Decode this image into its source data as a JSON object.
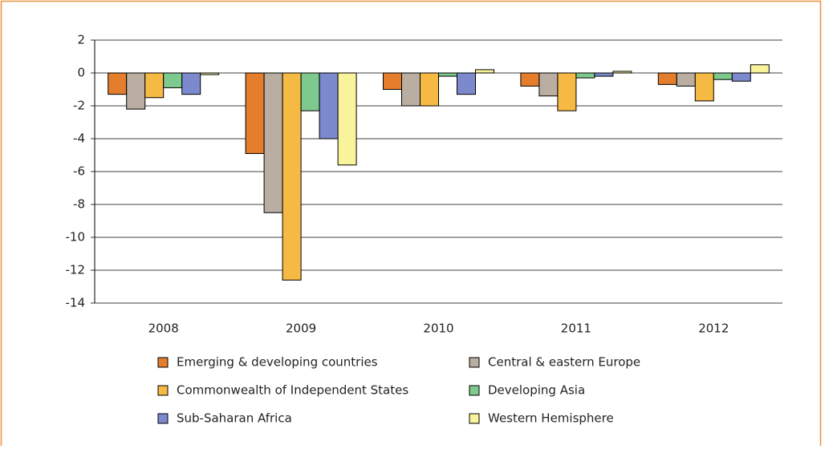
{
  "chart_data": {
    "type": "bar",
    "categories": [
      "2008",
      "2009",
      "2010",
      "2011",
      "2012"
    ],
    "series": [
      {
        "name": "Emerging & developing countries",
        "color": "#e47d2c",
        "values": [
          -1.3,
          -4.9,
          -1.0,
          -0.8,
          -0.7
        ]
      },
      {
        "name": "Central & eastern Europe",
        "color": "#b9ae a1",
        "values": [
          -2.2,
          -8.5,
          -2.0,
          -1.4,
          -0.8
        ]
      },
      {
        "name": "Commonwealth of Independent States",
        "color": "#f6ba44",
        "values": [
          -1.5,
          -12.6,
          -2.0,
          -2.3,
          -1.7
        ]
      },
      {
        "name": "Developing Asia",
        "color": "#7ec98d",
        "values": [
          -0.9,
          -2.3,
          -0.2,
          -0.3,
          -0.4
        ]
      },
      {
        "name": "Sub-Saharan Africa",
        "color": "#7c89cd",
        "values": [
          -1.3,
          -4.0,
          -1.3,
          -0.2,
          -0.5
        ]
      },
      {
        "name": "Western Hemisphere",
        "color": "#f9f39c",
        "values": [
          -0.1,
          -5.6,
          0.2,
          0.1,
          0.5
        ]
      }
    ],
    "ylim": [
      -14,
      2
    ],
    "yticks": [
      -14,
      -12,
      -10,
      -8,
      -6,
      -4,
      -2,
      0,
      2
    ],
    "grid": true
  }
}
